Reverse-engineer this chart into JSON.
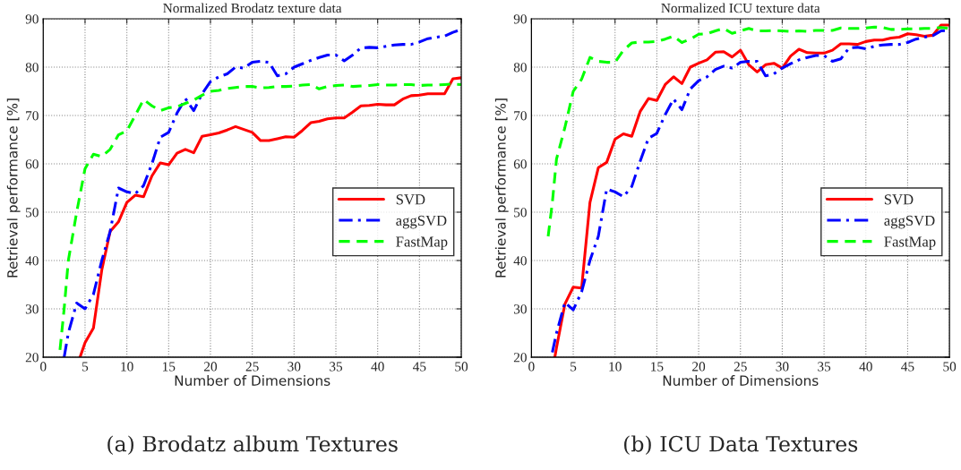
{
  "chart_data": [
    {
      "type": "line",
      "title": "Normalized Brodatz texture data",
      "xlabel": "Number of Dimensions",
      "ylabel": "Retrieval performance [%]",
      "xlim": [
        0,
        50
      ],
      "ylim": [
        20,
        90
      ],
      "xticks": [
        0,
        5,
        10,
        15,
        20,
        25,
        30,
        35,
        40,
        45,
        50
      ],
      "yticks": [
        20,
        30,
        40,
        50,
        60,
        70,
        80,
        90
      ],
      "grid": true,
      "legend": "right",
      "annotations": [
        "(a) Brodatz album Textures"
      ],
      "series": [
        {
          "name": "SVD",
          "color": "#ff0000",
          "line_style": "solid",
          "x": [
            4.4,
            5,
            6,
            7,
            8,
            9,
            10,
            11,
            12,
            13,
            14,
            15,
            16,
            17,
            18,
            19,
            20,
            21,
            22,
            23,
            24,
            25,
            26,
            27,
            28,
            29,
            30,
            31,
            32,
            33,
            34,
            35,
            36,
            37,
            38,
            39,
            40,
            41,
            42,
            43,
            44,
            45,
            46,
            47,
            48,
            49,
            50
          ],
          "values": [
            20,
            23,
            26,
            38,
            46,
            48,
            52,
            53.5,
            53.2,
            57.5,
            60.2,
            59.8,
            62.2,
            63,
            62.3,
            65.7,
            66,
            66.4,
            67,
            67.7,
            67.1,
            66.5,
            64.8,
            64.8,
            65.2,
            65.6,
            65.5,
            66.9,
            68.5,
            68.8,
            69.3,
            69.5,
            69.5,
            70.7,
            72,
            72.1,
            72.3,
            72.2,
            72.2,
            73.4,
            74.1,
            74.2,
            74.5,
            74.5,
            74.5,
            77.6,
            77.8
          ]
        },
        {
          "name": "aggSVD",
          "color": "#0000ff",
          "line_style": "dashdot",
          "x": [
            2.5,
            3,
            4,
            5,
            6,
            7,
            8,
            9,
            10,
            11,
            12,
            13,
            14,
            15,
            16,
            17,
            18,
            19,
            20,
            21,
            22,
            23,
            24,
            25,
            26,
            27,
            28,
            29,
            30,
            31,
            32,
            33,
            34,
            35,
            36,
            37,
            38,
            39,
            40,
            41,
            42,
            43,
            44,
            45,
            46,
            47,
            48,
            49,
            50
          ],
          "values": [
            20,
            25,
            31.2,
            30,
            33,
            40,
            46,
            55,
            54.2,
            53.8,
            55.5,
            60,
            65.5,
            66.5,
            70.5,
            73.5,
            71,
            74.5,
            77,
            78,
            78.6,
            80,
            79.8,
            81,
            81.2,
            81,
            78.2,
            78.6,
            80,
            80.7,
            81.4,
            82,
            82.5,
            82.5,
            81.3,
            82.5,
            84,
            84.1,
            84,
            84.3,
            84.6,
            84.7,
            84.7,
            85.2,
            85.9,
            86.2,
            86.4,
            87.2,
            87.8
          ]
        },
        {
          "name": "FastMap",
          "color": "#00ff00",
          "line_style": "dashed",
          "x": [
            2,
            2.5,
            3,
            4,
            5,
            6,
            7,
            8,
            9,
            10,
            11,
            12,
            13,
            14,
            15,
            16,
            17,
            18,
            19,
            20,
            21,
            22,
            23,
            24,
            25,
            26,
            27,
            28,
            29,
            30,
            31,
            32,
            33,
            34,
            35,
            36,
            37,
            38,
            39,
            40,
            41,
            42,
            43,
            44,
            45,
            46,
            47,
            48,
            49,
            50
          ],
          "values": [
            21.5,
            30,
            40,
            50,
            59,
            62,
            61.5,
            63,
            66,
            66.8,
            70,
            73.3,
            72,
            71,
            71.6,
            71.8,
            72.5,
            73.2,
            74.2,
            75,
            75.2,
            75.6,
            75.8,
            76,
            76,
            75.7,
            75.8,
            76,
            76,
            76.1,
            76.3,
            76.4,
            75.5,
            76,
            76.2,
            76.3,
            76,
            76.1,
            76.2,
            76.4,
            76.3,
            76.3,
            76.4,
            76.4,
            76.2,
            76.3,
            76.3,
            76.4,
            76.5,
            76.4
          ]
        }
      ]
    },
    {
      "type": "line",
      "title": "Normalized ICU texture data",
      "xlabel": "Number of Dimensions",
      "ylabel": "Retrieval performance [%]",
      "xlim": [
        0,
        50
      ],
      "ylim": [
        20,
        90
      ],
      "xticks": [
        0,
        5,
        10,
        15,
        20,
        25,
        30,
        35,
        40,
        45,
        50
      ],
      "yticks": [
        20,
        30,
        40,
        50,
        60,
        70,
        80,
        90
      ],
      "grid": true,
      "legend": "right",
      "annotations": [
        "(b) ICU Data Textures"
      ],
      "series": [
        {
          "name": "SVD",
          "color": "#ff0000",
          "line_style": "solid",
          "x": [
            2.8,
            3,
            4,
            5,
            6,
            7,
            8,
            9,
            10,
            11,
            12,
            13,
            14,
            15,
            16,
            17,
            18,
            19,
            20,
            21,
            22,
            23,
            24,
            25,
            26,
            27,
            28,
            29,
            30,
            31,
            32,
            33,
            34,
            35,
            36,
            37,
            38,
            39,
            40,
            41,
            42,
            43,
            44,
            45,
            46,
            47,
            48,
            49,
            50
          ],
          "values": [
            20,
            22,
            31,
            34.5,
            34.3,
            52,
            59.2,
            60.3,
            65.1,
            66.2,
            65.7,
            70.8,
            73.5,
            73.1,
            76.4,
            78,
            76.6,
            80,
            80.8,
            81.5,
            83.1,
            83.2,
            82.1,
            83.5,
            80.5,
            79,
            80.5,
            80.8,
            79.8,
            82.3,
            83.7,
            83,
            82.9,
            82.9,
            83.5,
            84.8,
            84.8,
            84.7,
            85.3,
            85.6,
            85.6,
            86,
            86.2,
            86.9,
            86.7,
            86.4,
            86.6,
            88.7,
            88.7
          ]
        },
        {
          "name": "aggSVD",
          "color": "#0000ff",
          "line_style": "dashdot",
          "x": [
            2.5,
            3,
            4,
            5,
            6,
            7,
            8,
            9,
            10,
            11,
            12,
            13,
            14,
            15,
            16,
            17,
            18,
            19,
            20,
            21,
            22,
            23,
            24,
            25,
            26,
            27,
            28,
            29,
            30,
            31,
            32,
            33,
            34,
            35,
            36,
            37,
            38,
            39,
            40,
            41,
            42,
            43,
            44,
            45,
            46,
            47,
            48,
            49,
            50
          ],
          "values": [
            21,
            25,
            31.3,
            29.8,
            33.5,
            40,
            45,
            54.8,
            54.2,
            53.2,
            55.3,
            60.5,
            65.3,
            66.3,
            70.2,
            73.4,
            71.2,
            75.5,
            77.2,
            78,
            79.5,
            80.2,
            79.8,
            81,
            81.2,
            81.2,
            78.2,
            78.6,
            79.8,
            80.7,
            81.5,
            82,
            82.4,
            82.4,
            81.2,
            81.7,
            84,
            84.1,
            83.8,
            84.3,
            84.6,
            84.7,
            84.7,
            85.1,
            85.8,
            86.2,
            86.5,
            87.5,
            87.6
          ]
        },
        {
          "name": "FastMap",
          "color": "#00ff00",
          "line_style": "dashed",
          "x": [
            2,
            2.5,
            3,
            4,
            5,
            6,
            7,
            8,
            9,
            10,
            11,
            12,
            13,
            14,
            15,
            16,
            17,
            18,
            19,
            20,
            21,
            22,
            23,
            24,
            25,
            26,
            27,
            28,
            29,
            30,
            31,
            32,
            33,
            34,
            35,
            36,
            37,
            38,
            39,
            40,
            41,
            42,
            43,
            44,
            45,
            46,
            47,
            48,
            49,
            50
          ],
          "values": [
            45,
            52,
            61,
            67.5,
            75,
            77.5,
            82,
            81.2,
            81,
            81,
            83.5,
            85,
            85.2,
            85.2,
            85.3,
            85.8,
            86.4,
            85.1,
            85.8,
            86.8,
            86.9,
            87.5,
            88,
            87,
            87.5,
            88,
            87.5,
            87.5,
            87.6,
            87.5,
            87.4,
            87.5,
            87.4,
            87.6,
            87.6,
            87.6,
            88.1,
            88,
            88,
            88.1,
            88.3,
            88.2,
            87.8,
            87.8,
            87.9,
            87.9,
            88,
            88,
            88.2,
            88
          ]
        }
      ]
    }
  ]
}
